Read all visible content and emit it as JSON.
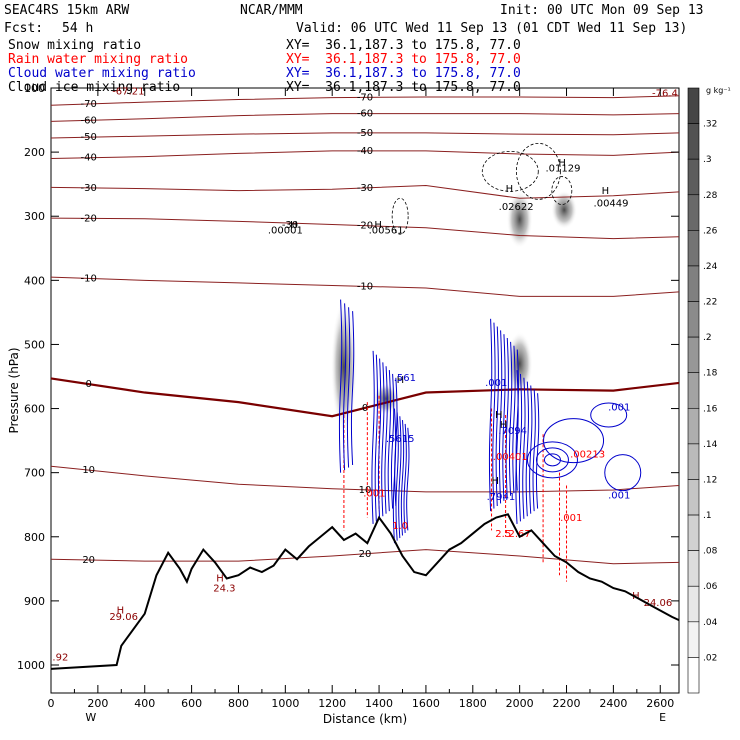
{
  "header": {
    "model": "SEAC4RS 15km ARW",
    "org": "NCAR/MMM",
    "init": "Init: 00 UTC Mon 09 Sep 13",
    "fcst_label": "Fcst:",
    "fcst_value": "54 h",
    "valid": "Valid: 06 UTC Wed 11 Sep 13 (01 CDT Wed 11 Sep 13)",
    "fields": [
      {
        "name": "Snow mixing ratio",
        "xy": "XY=  36.1,187.3 to 175.8, 77.0",
        "color": "#000000"
      },
      {
        "name": "Rain water mixing ratio",
        "xy": "XY=  36.1,187.3 to 175.8, 77.0",
        "color": "#ff0000"
      },
      {
        "name": "Cloud water mixing ratio",
        "xy": "XY=  36.1,187.3 to 175.8, 77.0",
        "color": "#0000cc"
      },
      {
        "name": "Cloud ice mixing ratio",
        "xy": "XY=  36.1,187.3 to 175.8, 77.0",
        "color": "#000000"
      }
    ]
  },
  "colorbar": {
    "unit": "g kg⁻¹",
    "ticks": [
      ".32",
      ".3",
      ".28",
      ".26",
      ".24",
      ".22",
      ".2",
      ".18",
      ".16",
      ".14",
      ".12",
      ".1",
      ".08",
      ".06",
      ".04",
      ".02"
    ]
  },
  "chart_data": {
    "type": "contour cross-section",
    "xlabel": "Distance (km)",
    "ylabel": "Pressure (hPa)",
    "xlim": [
      0,
      2680
    ],
    "ylim": [
      1000,
      100
    ],
    "xticks": [
      0,
      200,
      400,
      600,
      800,
      1000,
      1200,
      1400,
      1600,
      1800,
      2000,
      2200,
      2400,
      2600
    ],
    "yticks": [
      100,
      200,
      300,
      400,
      500,
      600,
      700,
      800,
      900,
      1000
    ],
    "endpoints": {
      "left": "W",
      "right": "E"
    },
    "temperature_isotherms_C": [
      {
        "t": -70,
        "p": [
          127,
          122,
          118,
          115,
          114,
          114,
          115,
          112
        ]
      },
      {
        "t": -60,
        "p": [
          152,
          148,
          143,
          140,
          140,
          140,
          142,
          140
        ]
      },
      {
        "t": -50,
        "p": [
          178,
          175,
          172,
          170,
          170,
          172,
          173,
          170
        ]
      },
      {
        "t": -40,
        "p": [
          210,
          207,
          202,
          198,
          198,
          203,
          205,
          200
        ]
      },
      {
        "t": -30,
        "p": [
          255,
          257,
          260,
          258,
          252,
          272,
          268,
          262
        ]
      },
      {
        "t": -20,
        "p": [
          303,
          304,
          308,
          313,
          318,
          330,
          335,
          332
        ]
      },
      {
        "t": -10,
        "p": [
          395,
          400,
          404,
          408,
          412,
          425,
          425,
          418
        ]
      },
      {
        "t": 0,
        "p": [
          553,
          575,
          590,
          612,
          575,
          570,
          572,
          560
        ]
      },
      {
        "t": 10,
        "p": [
          690,
          705,
          718,
          725,
          730,
          730,
          727,
          720
        ]
      },
      {
        "t": 20,
        "p": [
          835,
          838,
          838,
          830,
          820,
          830,
          842,
          840
        ]
      }
    ],
    "isotherm_x_km": [
      0,
      400,
      800,
      1200,
      1600,
      2000,
      2400,
      2680
    ],
    "terrain": {
      "x": [
        0,
        280,
        300,
        400,
        450,
        500,
        550,
        580,
        600,
        650,
        700,
        750,
        800,
        850,
        900,
        950,
        1000,
        1050,
        1100,
        1150,
        1200,
        1250,
        1300,
        1350,
        1400,
        1450,
        1500,
        1550,
        1600,
        1650,
        1700,
        1750,
        1800,
        1850,
        1900,
        1950,
        2000,
        2050,
        2100,
        2150,
        2200,
        2250,
        2300,
        2350,
        2400,
        2450,
        2500,
        2550,
        2600,
        2650,
        2680
      ],
      "p": [
        1006,
        1000,
        970,
        920,
        860,
        825,
        850,
        870,
        850,
        820,
        840,
        865,
        860,
        848,
        855,
        845,
        820,
        835,
        815,
        800,
        785,
        805,
        795,
        810,
        770,
        795,
        830,
        855,
        860,
        840,
        820,
        810,
        795,
        780,
        770,
        765,
        800,
        790,
        810,
        830,
        840,
        855,
        865,
        870,
        880,
        885,
        895,
        905,
        915,
        925,
        930
      ]
    },
    "labels": [
      {
        "text": "-67.21",
        "x": 330,
        "p": 110,
        "color": "#8b0000"
      },
      {
        "text": "-76.4",
        "x": 2620,
        "p": 113,
        "color": "#8b0000"
      },
      {
        "text": ".92",
        "x": 40,
        "p": 993,
        "color": "#8b0000"
      },
      {
        "text": "29.06",
        "x": 310,
        "p": 930,
        "color": "#8b0000"
      },
      {
        "text": "24.3",
        "x": 740,
        "p": 885,
        "color": "#8b0000"
      },
      {
        "text": "24.06",
        "x": 2590,
        "p": 908,
        "color": "#8b0000"
      },
      {
        "text": "-30",
        "x": 1020,
        "p": 318,
        "color": "#000000"
      },
      {
        "text": ".00001",
        "x": 1000,
        "p": 327,
        "color": "#000000"
      },
      {
        "text": ".00561",
        "x": 1430,
        "p": 327,
        "color": "#000000"
      },
      {
        "text": ".02622",
        "x": 1985,
        "p": 290,
        "color": "#000000"
      },
      {
        "text": ".01129",
        "x": 2185,
        "p": 230,
        "color": "#000000"
      },
      {
        "text": ".00449",
        "x": 2390,
        "p": 285,
        "color": "#000000"
      },
      {
        "text": ".561",
        "x": 1510,
        "p": 557,
        "color": "#0000cc"
      },
      {
        "text": ".5615",
        "x": 1490,
        "p": 652,
        "color": "#0000cc"
      },
      {
        "text": ".7094",
        "x": 1970,
        "p": 640,
        "color": "#0000cc"
      },
      {
        "text": ".7941",
        "x": 1920,
        "p": 743,
        "color": "#0000cc"
      },
      {
        "text": ".001",
        "x": 1900,
        "p": 565,
        "color": "#0000cc"
      },
      {
        "text": ".001",
        "x": 2425,
        "p": 603,
        "color": "#0000cc"
      },
      {
        "text": ".001",
        "x": 2425,
        "p": 740,
        "color": "#0000cc"
      },
      {
        "text": ".00401",
        "x": 1960,
        "p": 680,
        "color": "#ff0000"
      },
      {
        "text": ".00213",
        "x": 2290,
        "p": 676,
        "color": "#ff0000"
      },
      {
        "text": ".001",
        "x": 1380,
        "p": 737,
        "color": "#ff0000"
      },
      {
        "text": ".001",
        "x": 2220,
        "p": 775,
        "color": "#ff0000"
      },
      {
        "text": "1.0",
        "x": 1490,
        "p": 788,
        "color": "#ff0000"
      },
      {
        "text": "2.5",
        "x": 1930,
        "p": 800,
        "color": "#ff0000"
      },
      {
        "text": "2.67",
        "x": 2000,
        "p": 800,
        "color": "#ff0000"
      }
    ],
    "snow_shading": [
      {
        "x": 1250,
        "p_top": 430,
        "p_bottom": 640,
        "max": 0.3
      },
      {
        "x": 1430,
        "p_top": 560,
        "p_bottom": 610,
        "max": 0.3
      },
      {
        "x": 2000,
        "p_top": 260,
        "p_bottom": 350,
        "max": 0.32
      },
      {
        "x": 2000,
        "p_top": 480,
        "p_bottom": 580,
        "max": 0.26
      },
      {
        "x": 2190,
        "p_top": 260,
        "p_bottom": 320,
        "max": 0.12
      }
    ]
  }
}
